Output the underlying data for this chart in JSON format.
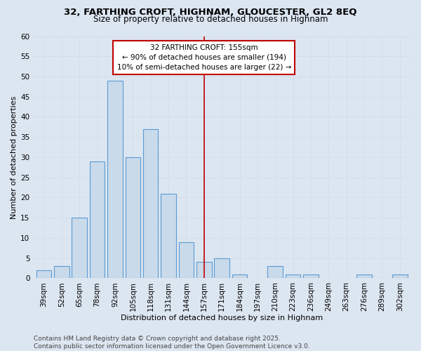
{
  "title_line1": "32, FARTHING CROFT, HIGHNAM, GLOUCESTER, GL2 8EQ",
  "title_line2": "Size of property relative to detached houses in Highnam",
  "xlabel": "Distribution of detached houses by size in Highnam",
  "ylabel": "Number of detached properties",
  "categories": [
    "39sqm",
    "52sqm",
    "65sqm",
    "78sqm",
    "92sqm",
    "105sqm",
    "118sqm",
    "131sqm",
    "144sqm",
    "157sqm",
    "171sqm",
    "184sqm",
    "197sqm",
    "210sqm",
    "223sqm",
    "236sqm",
    "249sqm",
    "263sqm",
    "276sqm",
    "289sqm",
    "302sqm"
  ],
  "values": [
    2,
    3,
    15,
    29,
    49,
    30,
    37,
    21,
    9,
    4,
    5,
    1,
    0,
    3,
    1,
    1,
    0,
    0,
    1,
    0,
    1
  ],
  "bar_color": "#c9daea",
  "bar_edge_color": "#5b9bd5",
  "vline_x_index": 9,
  "vline_color": "#c00000",
  "annotation_text": "32 FARTHING CROFT: 155sqm\n← 90% of detached houses are smaller (194)\n10% of semi-detached houses are larger (22) →",
  "annotation_box_color": "#ffffff",
  "annotation_box_edge_color": "#c00000",
  "ylim": [
    0,
    60
  ],
  "yticks": [
    0,
    5,
    10,
    15,
    20,
    25,
    30,
    35,
    40,
    45,
    50,
    55,
    60
  ],
  "grid_color": "#d4dde8",
  "background_color": "#dce6f1",
  "footer_text": "Contains HM Land Registry data © Crown copyright and database right 2025.\nContains public sector information licensed under the Open Government Licence v3.0.",
  "title_fontsize": 9.5,
  "subtitle_fontsize": 8.5,
  "axis_label_fontsize": 8,
  "tick_fontsize": 7.5,
  "annotation_fontsize": 7.5,
  "footer_fontsize": 6.5
}
